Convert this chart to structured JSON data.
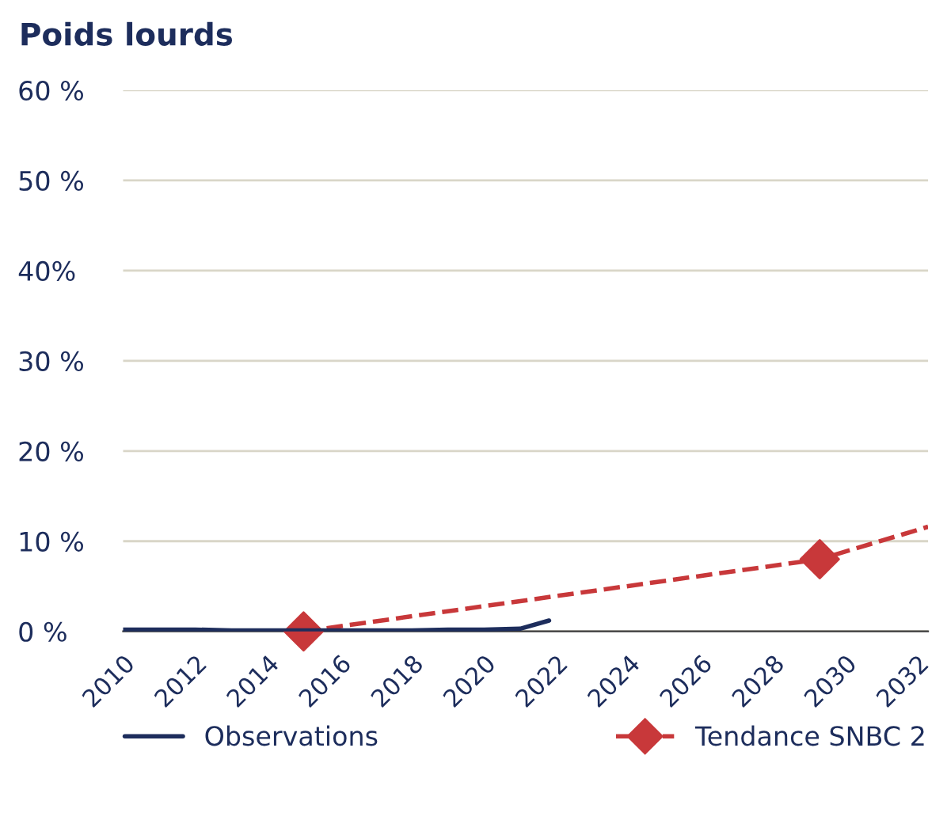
{
  "chart_data": {
    "type": "line",
    "title": "Poids lourds",
    "x": [
      2010,
      2011,
      2012,
      2013,
      2014,
      2015,
      2016,
      2017,
      2018,
      2019,
      2020,
      2021,
      2021.8
    ],
    "series": [
      {
        "name": "Observations",
        "color": "#1d2d5c",
        "values": [
          0.2,
          0.2,
          0.2,
          0.1,
          0.1,
          0.1,
          0.1,
          0.1,
          0.1,
          0.2,
          0.2,
          0.3,
          1.2
        ]
      },
      {
        "name": "Tendance SNBC 2",
        "color": "#c8383a",
        "line_style": "dashed",
        "x": [
          2015,
          2029.3,
          2032.3
        ],
        "values": [
          0,
          8,
          11.6
        ]
      },
      {
        "type": "scatter",
        "color": "#c8383a",
        "marker": "diamond",
        "x": [
          2015,
          2029.3
        ],
        "values": [
          0,
          8
        ]
      }
    ],
    "xlim": [
      2010,
      2032.3
    ],
    "xticks": [
      2010,
      2012,
      2014,
      2016,
      2018,
      2020,
      2022,
      2024,
      2026,
      2028,
      2030,
      2032
    ],
    "ylim": [
      0,
      60
    ],
    "yticks": [
      {
        "value": 0,
        "label": "0 %"
      },
      {
        "value": 10,
        "label": "10 %"
      },
      {
        "value": 20,
        "label": "20 %"
      },
      {
        "value": 30,
        "label": "30 %"
      },
      {
        "value": 40,
        "label": "40%"
      },
      {
        "value": 50,
        "label": "50 %"
      },
      {
        "value": 60,
        "label": "60 %"
      }
    ],
    "grid": "y",
    "legend": "bottom"
  }
}
